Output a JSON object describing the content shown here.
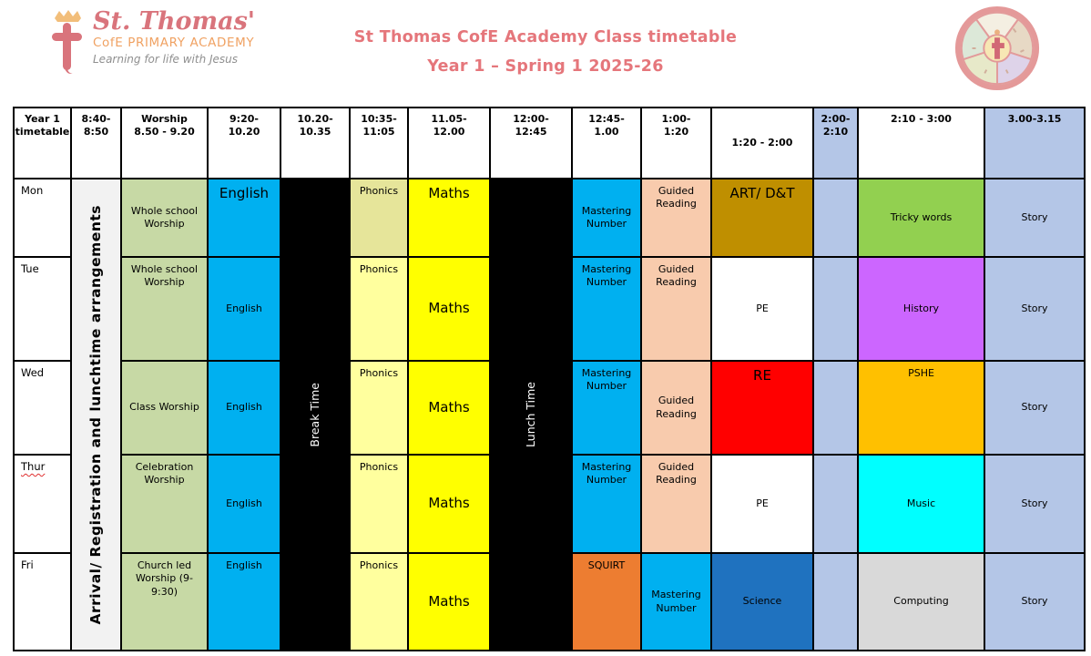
{
  "banner": {
    "title_line1": "St Thomas CofE Academy Class timetable",
    "title_line2": "Year 1 – Spring 1 2025-26",
    "title_color": "#E5767B",
    "logo": {
      "name": "St. Thomas'",
      "subtitle": "CofE PRIMARY ACADEMY",
      "tagline": "Learning for life with Jesus",
      "name_color": "#D9747C",
      "subtitle_color": "#F0A263",
      "tagline_color": "#8F8F8F"
    }
  },
  "grid": {
    "columns": [
      {
        "label": "Year 1\ntimetable"
      },
      {
        "label": "8:40-\n8:50"
      },
      {
        "label": "Worship\n8.50 - 9.20"
      },
      {
        "label": "9:20-\n10.20"
      },
      {
        "label": "10.20-\n10.35"
      },
      {
        "label": "10:35-\n11:05"
      },
      {
        "label": "11.05-\n12.00"
      },
      {
        "label": "12:00-\n12:45"
      },
      {
        "label": "12:45-\n1.00"
      },
      {
        "label": "1:00-\n1:20"
      },
      {
        "label": "1:20 - 2:00",
        "va": "mid"
      },
      {
        "label": "2:00-\n2:10",
        "bg": "#B4C6E7"
      },
      {
        "label": "2:10 - 3:00"
      },
      {
        "label": "3.00-3.15",
        "bg": "#B4C6E7"
      }
    ],
    "merged": {
      "arrival": {
        "label": "Arrival/ Registration and lunchtime arrangements",
        "bg": "#F2F2F2"
      },
      "break_time": {
        "label": "Break Time",
        "bg": "#000000"
      },
      "lunch_time": {
        "label": "Lunch Time",
        "bg": "#000000"
      }
    },
    "days": [
      {
        "label": "Mon",
        "cells": [
          {
            "t": "Whole school Worship",
            "bg": "#C7D9A5"
          },
          {
            "t": "English",
            "bg": "#00B0F0",
            "va": "top",
            "big": true
          },
          {
            "t": "Phonics",
            "bg": "#E6E59A",
            "va": "top"
          },
          {
            "t": "Maths",
            "bg": "#FFFF00",
            "va": "top",
            "big": true
          },
          {
            "t": "Mastering Number",
            "bg": "#00B0F0"
          },
          {
            "t": "Guided Reading",
            "bg": "#F8CBAD",
            "va": "top"
          },
          {
            "t": "ART/ D&T",
            "bg": "#BF8F00",
            "va": "top",
            "big": true
          },
          {
            "t": "",
            "bg": "#B4C6E7"
          },
          {
            "t": "Tricky words",
            "bg": "#92D050"
          },
          {
            "t": "Story",
            "bg": "#B4C6E7"
          }
        ]
      },
      {
        "label": "Tue",
        "cells": [
          {
            "t": "Whole school Worship",
            "bg": "#C7D9A5",
            "va": "top"
          },
          {
            "t": "English",
            "bg": "#00B0F0"
          },
          {
            "t": "Phonics",
            "bg": "#FFFF9E",
            "va": "top"
          },
          {
            "t": "Maths",
            "bg": "#FFFF00",
            "big": true
          },
          {
            "t": "Mastering Number",
            "bg": "#00B0F0",
            "va": "top"
          },
          {
            "t": "Guided Reading",
            "bg": "#F8CBAD",
            "va": "top"
          },
          {
            "t": "PE",
            "bg": "#FFFFFF"
          },
          {
            "t": "",
            "bg": "#B4C6E7"
          },
          {
            "t": "History",
            "bg": "#CC66FF"
          },
          {
            "t": "Story",
            "bg": "#B4C6E7"
          }
        ]
      },
      {
        "label": "Wed",
        "cells": [
          {
            "t": "Class Worship",
            "bg": "#C7D9A5"
          },
          {
            "t": "English",
            "bg": "#00B0F0"
          },
          {
            "t": "Phonics",
            "bg": "#FFFF9E",
            "va": "top"
          },
          {
            "t": "Maths",
            "bg": "#FFFF00",
            "big": true
          },
          {
            "t": "Mastering Number",
            "bg": "#00B0F0",
            "va": "top"
          },
          {
            "t": "Guided Reading",
            "bg": "#F8CBAD"
          },
          {
            "t": "RE",
            "bg": "#FF0000",
            "va": "top",
            "big": true
          },
          {
            "t": "",
            "bg": "#B4C6E7"
          },
          {
            "t": "PSHE",
            "bg": "#FFC000",
            "va": "top"
          },
          {
            "t": "Story",
            "bg": "#B4C6E7"
          }
        ]
      },
      {
        "label": "Thur",
        "misspelled": true,
        "cells": [
          {
            "t": "Celebration Worship",
            "bg": "#C7D9A5",
            "va": "top"
          },
          {
            "t": "English",
            "bg": "#00B0F0"
          },
          {
            "t": "Phonics",
            "bg": "#FFFF9E",
            "va": "top"
          },
          {
            "t": "Maths",
            "bg": "#FFFF00",
            "big": true
          },
          {
            "t": "Mastering Number",
            "bg": "#00B0F0",
            "va": "top"
          },
          {
            "t": "Guided Reading",
            "bg": "#F8CBAD",
            "va": "top"
          },
          {
            "t": "PE",
            "bg": "#FFFFFF"
          },
          {
            "t": "",
            "bg": "#B4C6E7"
          },
          {
            "t": "Music",
            "bg": "#00FFFF"
          },
          {
            "t": "Story",
            "bg": "#B4C6E7"
          }
        ]
      },
      {
        "label": "Fri",
        "cells": [
          {
            "t": "Church led Worship (9-9:30)",
            "bg": "#C7D9A5",
            "va": "top"
          },
          {
            "t": "English",
            "bg": "#00B0F0",
            "va": "top"
          },
          {
            "t": "Phonics",
            "bg": "#FFFF9E",
            "va": "top"
          },
          {
            "t": "Maths",
            "bg": "#FFFF00",
            "big": true
          },
          {
            "t": "SQUIRT",
            "bg": "#ED7D31",
            "va": "top"
          },
          {
            "t": "Mastering Number",
            "bg": "#00B0F0"
          },
          {
            "t": "Science",
            "bg": "#1F72BF"
          },
          {
            "t": "",
            "bg": "#B4C6E7"
          },
          {
            "t": "Computing",
            "bg": "#D9D9D9"
          },
          {
            "t": "Story",
            "bg": "#B4C6E7"
          }
        ]
      }
    ]
  }
}
